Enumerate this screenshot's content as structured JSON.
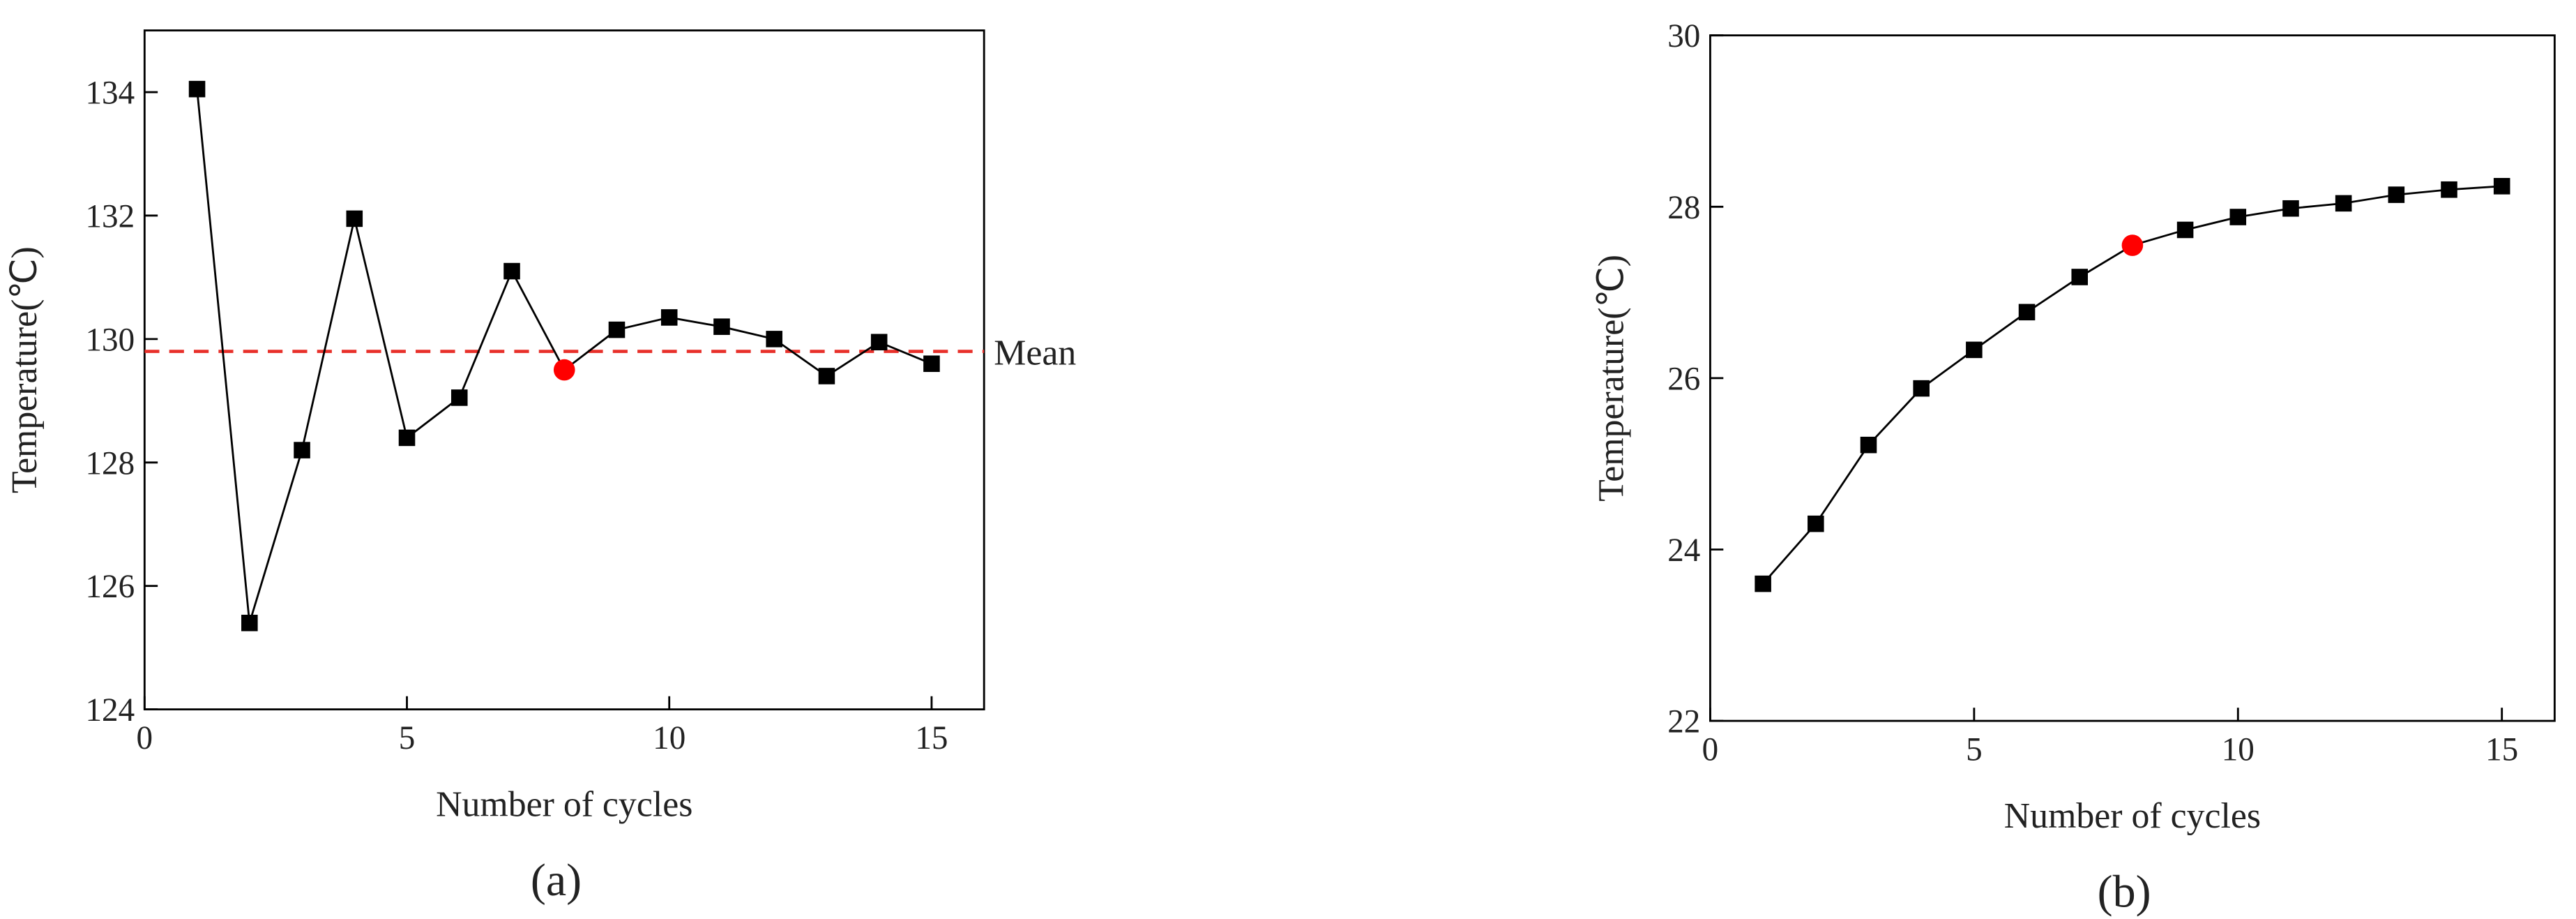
{
  "chart_data": [
    {
      "type": "line",
      "panel_label": "(a)",
      "xlabel": "Number of cycles",
      "ylabel": "Temperature(℃)",
      "x": [
        1,
        2,
        3,
        4,
        5,
        6,
        7,
        8,
        9,
        10,
        11,
        12,
        13,
        14,
        15
      ],
      "series": [
        {
          "color": "#000000",
          "values": [
            134.05,
            125.4,
            128.2,
            131.95,
            128.4,
            129.05,
            131.1,
            129.5,
            130.15,
            130.35,
            130.2,
            130.0,
            129.4,
            129.95,
            129.6
          ],
          "marker_colors": [
            "#000000",
            "#000000",
            "#000000",
            "#000000",
            "#000000",
            "#000000",
            "#000000",
            "#ff0000",
            "#000000",
            "#000000",
            "#000000",
            "#000000",
            "#000000",
            "#000000",
            "#000000"
          ],
          "markers": [
            "square",
            "square",
            "square",
            "square",
            "square",
            "square",
            "square",
            "circle",
            "square",
            "square",
            "square",
            "square",
            "square",
            "square",
            "square"
          ]
        }
      ],
      "reference_line": {
        "value": 129.8,
        "label": "Mean",
        "color": "#e8302a"
      },
      "xlim": [
        0,
        16
      ],
      "xticks": [
        0,
        5,
        10,
        15
      ],
      "ylim": [
        124,
        135
      ],
      "yticks": [
        124,
        126,
        128,
        130,
        132,
        134
      ]
    },
    {
      "type": "line",
      "panel_label": "(b)",
      "xlabel": "Number of cycles",
      "ylabel": "Temperature(℃)",
      "x": [
        1,
        2,
        3,
        4,
        5,
        6,
        7,
        8,
        9,
        10,
        11,
        12,
        13,
        14,
        15
      ],
      "series": [
        {
          "color": "#000000",
          "values": [
            23.6,
            24.3,
            25.22,
            25.88,
            26.33,
            26.77,
            27.18,
            27.55,
            27.73,
            27.88,
            27.98,
            28.04,
            28.14,
            28.2,
            28.24
          ],
          "marker_colors": [
            "#000000",
            "#000000",
            "#000000",
            "#000000",
            "#000000",
            "#000000",
            "#000000",
            "#ff0000",
            "#000000",
            "#000000",
            "#000000",
            "#000000",
            "#000000",
            "#000000",
            "#000000"
          ],
          "markers": [
            "square",
            "square",
            "square",
            "square",
            "square",
            "square",
            "square",
            "circle",
            "square",
            "square",
            "square",
            "square",
            "square",
            "square",
            "square"
          ]
        }
      ],
      "xlim": [
        0,
        16
      ],
      "xticks": [
        0,
        5,
        10,
        15
      ],
      "ylim": [
        22,
        30
      ],
      "yticks": [
        22,
        24,
        26,
        28,
        30
      ]
    }
  ]
}
